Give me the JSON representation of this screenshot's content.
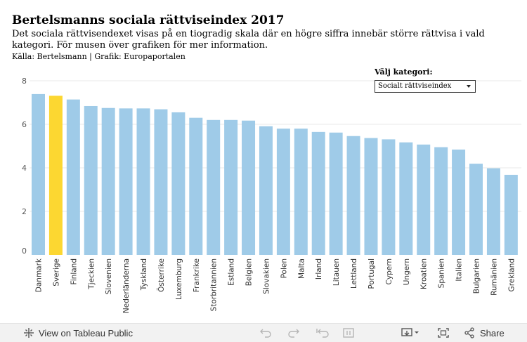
{
  "header": {
    "title": "Bertelsmanns sociala rättviseindex 2017",
    "subtitle": "Det sociala rättvisendexet visas på en tiogradig skala där en högre siffra innebär större rättvisa i vald kategori. För musen över grafiken för mer information.",
    "source": "Källa: Bertelsmann | Grafik: Europaportalen"
  },
  "selector": {
    "label": "Välj kategori:",
    "value": "Socialt rättviseindex"
  },
  "colors": {
    "bar": "#9fcbe8",
    "highlight": "#fcd731",
    "grid": "#e8e8e8"
  },
  "chart_data": {
    "type": "bar",
    "title": "Bertelsmanns sociala rättviseindex 2017",
    "xlabel": "",
    "ylabel": "",
    "ylim": [
      0,
      8
    ],
    "yticks": [
      0,
      2,
      4,
      6,
      8
    ],
    "highlight_category": "Sverige",
    "categories": [
      "Danmark",
      "Sverige",
      "Finland",
      "Tjeckien",
      "Slovenien",
      "Nederländerna",
      "Tyskland",
      "Österrike",
      "Luxemburg",
      "Frankrike",
      "Storbritannien",
      "Estland",
      "Belgien",
      "Slovakien",
      "Polen",
      "Malta",
      "Irland",
      "Litauen",
      "Lettland",
      "Portugal",
      "Cypern",
      "Ungern",
      "Kroatien",
      "Spanien",
      "Italien",
      "Bulgarien",
      "Rumänien",
      "Grekland"
    ],
    "values": [
      7.39,
      7.31,
      7.14,
      6.84,
      6.75,
      6.73,
      6.73,
      6.69,
      6.55,
      6.3,
      6.2,
      6.2,
      6.17,
      5.91,
      5.8,
      5.8,
      5.65,
      5.62,
      5.46,
      5.37,
      5.31,
      5.17,
      5.07,
      4.95,
      4.84,
      4.19,
      3.98,
      3.68
    ]
  },
  "toolbar": {
    "view_label": "View on Tableau Public",
    "share_label": "Share"
  }
}
